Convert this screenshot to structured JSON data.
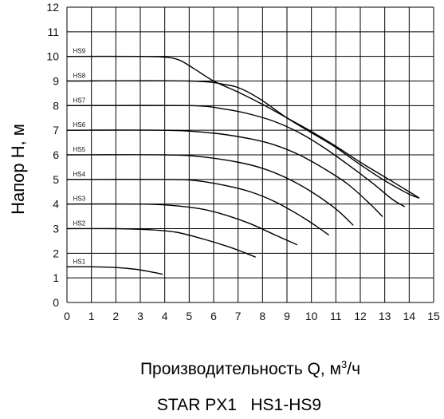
{
  "chart_data": {
    "type": "line",
    "title": "STAR PX1   HS1-HS9",
    "xlabel_main": "Производительность Q, м",
    "xlabel_sup": "3",
    "xlabel_tail": "/ч",
    "ylabel": "Напор Н, м",
    "xlim": [
      0,
      15
    ],
    "ylim": [
      0,
      12
    ],
    "grid": true,
    "x_ticks": [
      "0",
      "1",
      "2",
      "3",
      "4",
      "5",
      "6",
      "7",
      "8",
      "9",
      "10",
      "11",
      "12",
      "13",
      "14",
      "15"
    ],
    "y_ticks": [
      "0",
      "1",
      "2",
      "3",
      "4",
      "5",
      "6",
      "7",
      "8",
      "9",
      "10",
      "11",
      "12"
    ],
    "series": [
      {
        "name": "HS1",
        "x": [
          0,
          1,
          2,
          2.8,
          3.4,
          3.9
        ],
        "y": [
          1.45,
          1.45,
          1.42,
          1.35,
          1.25,
          1.15
        ]
      },
      {
        "name": "HS2",
        "x": [
          0,
          2,
          3.5,
          4.5,
          5.5,
          6.5,
          7.2,
          7.7
        ],
        "y": [
          3.0,
          3.0,
          2.95,
          2.85,
          2.6,
          2.3,
          2.05,
          1.85
        ]
      },
      {
        "name": "HS3",
        "x": [
          0,
          3,
          4.2,
          5.5,
          6.5,
          7.5,
          8.5,
          9.4
        ],
        "y": [
          4.0,
          4.0,
          3.95,
          3.8,
          3.55,
          3.2,
          2.75,
          2.35
        ]
      },
      {
        "name": "HS4",
        "x": [
          0,
          4,
          5.3,
          6.5,
          7.5,
          8.5,
          9.5,
          10.2,
          10.7
        ],
        "y": [
          5.0,
          5.0,
          4.95,
          4.75,
          4.5,
          4.1,
          3.55,
          3.1,
          2.75
        ]
      },
      {
        "name": "HS5",
        "x": [
          0,
          4,
          5.5,
          7,
          8,
          9,
          10,
          11,
          11.7
        ],
        "y": [
          6.0,
          6.0,
          5.92,
          5.7,
          5.45,
          5.05,
          4.5,
          3.8,
          3.15
        ]
      },
      {
        "name": "HS6",
        "x": [
          0,
          4,
          6,
          7.5,
          8.5,
          9.5,
          10.5,
          11.5,
          12.4,
          12.9
        ],
        "y": [
          7.0,
          7.0,
          6.88,
          6.65,
          6.4,
          6.0,
          5.45,
          4.8,
          4.0,
          3.5
        ]
      },
      {
        "name": "HS7",
        "x": [
          0,
          5,
          6.5,
          7.5,
          8.5,
          9.5,
          10.5,
          11.5,
          12.5,
          13.3,
          13.8
        ],
        "y": [
          8.0,
          8.0,
          7.85,
          7.65,
          7.35,
          6.9,
          6.3,
          5.6,
          4.85,
          4.2,
          3.9
        ]
      },
      {
        "name": "HS8",
        "x": [
          0,
          5,
          6.5,
          7.2,
          8,
          9,
          10,
          11,
          12,
          13,
          14,
          14.4
        ],
        "y": [
          9.0,
          9.0,
          8.85,
          8.65,
          8.2,
          7.5,
          6.9,
          6.3,
          5.6,
          4.95,
          4.4,
          4.25
        ]
      },
      {
        "name": "HS9",
        "x": [
          0,
          3,
          4,
          4.6,
          5.2,
          6,
          7,
          8,
          9,
          10,
          11,
          12,
          13,
          14,
          14.4
        ],
        "y": [
          10.0,
          10.0,
          9.97,
          9.85,
          9.5,
          9.0,
          8.55,
          8.05,
          7.5,
          6.95,
          6.35,
          5.7,
          5.1,
          4.5,
          4.25
        ]
      }
    ]
  }
}
